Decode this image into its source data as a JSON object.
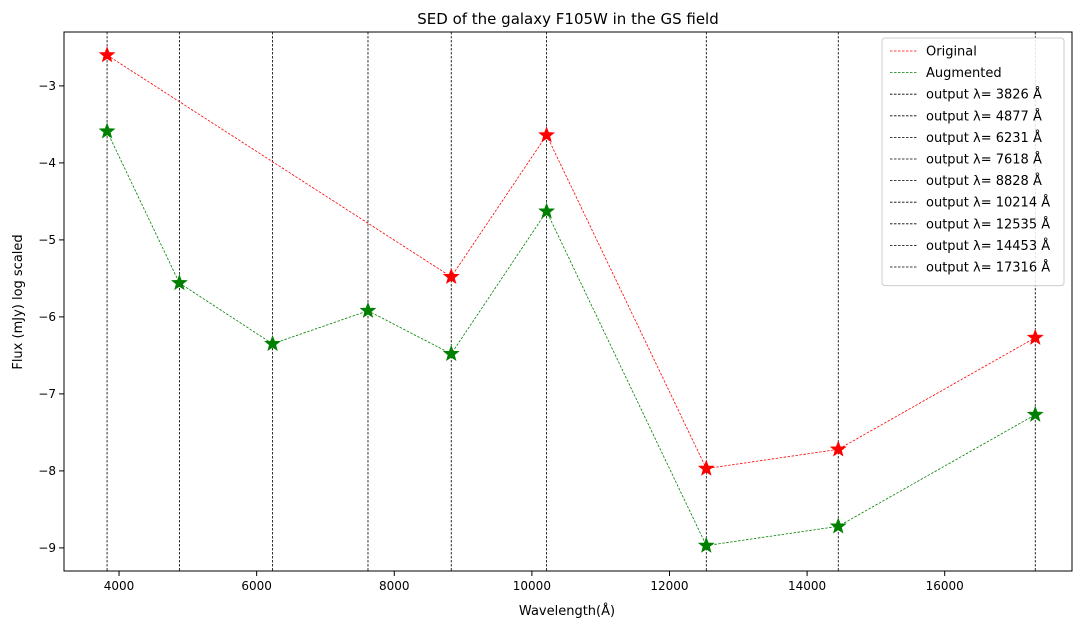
{
  "chart_data": {
    "type": "line",
    "title": "SED of the galaxy F105W in the GS field",
    "xlabel": "Wavelength(Å)",
    "ylabel": "Flux (mJy) log scaled",
    "xlim": [
      3200,
      17850
    ],
    "ylim": [
      -9.3,
      -2.3
    ],
    "xticks": [
      4000,
      6000,
      8000,
      10000,
      12000,
      14000,
      16000
    ],
    "yticks": [
      -3,
      -4,
      -5,
      -6,
      -7,
      -8,
      -9
    ],
    "grid": false,
    "legend_position": "top-right",
    "series": [
      {
        "name": "Original",
        "color": "#ff0000",
        "marker": "star",
        "x": [
          3826,
          8828,
          10214,
          12535,
          14453,
          17316
        ],
        "y": [
          -2.6,
          -5.48,
          -3.64,
          -7.97,
          -7.72,
          -6.27
        ]
      },
      {
        "name": "Augmented",
        "color": "#008000",
        "marker": "star",
        "x": [
          3826,
          4877,
          6231,
          7618,
          8828,
          10214,
          12535,
          14453,
          17316
        ],
        "y": [
          -3.59,
          -5.56,
          -6.35,
          -5.92,
          -6.48,
          -4.63,
          -8.97,
          -8.72,
          -7.27
        ]
      }
    ],
    "vlines": [
      {
        "x": 3826,
        "label": "output λ= 3826 Å"
      },
      {
        "x": 4877,
        "label": "output λ= 4877 Å"
      },
      {
        "x": 6231,
        "label": "output λ= 6231 Å"
      },
      {
        "x": 7618,
        "label": "output λ= 7618 Å"
      },
      {
        "x": 8828,
        "label": "output λ= 8828 Å"
      },
      {
        "x": 10214,
        "label": "output λ= 10214 Å"
      },
      {
        "x": 12535,
        "label": "output λ= 12535 Å"
      },
      {
        "x": 14453,
        "label": "output λ= 14453 Å"
      },
      {
        "x": 17316,
        "label": "output λ= 17316 Å"
      }
    ]
  }
}
